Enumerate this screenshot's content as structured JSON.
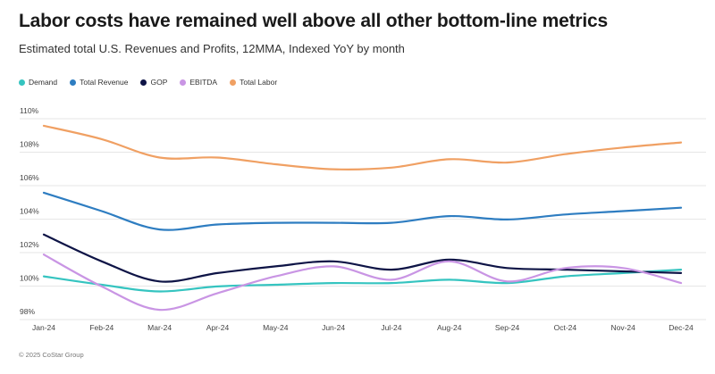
{
  "colors": {
    "demand": "#35C4C0",
    "revenue": "#2E7DC1",
    "gop": "#0E1446",
    "ebitda": "#C995E4",
    "labor": "#F0A063",
    "grid": "#e6e6e6",
    "axis_text": "#444444"
  },
  "footer": "© 2025 CoStar Group",
  "chart_data": {
    "type": "line",
    "title": "Labor costs have remained well above all other bottom-line metrics",
    "subtitle": "Estimated total U.S. Revenues and Profits, 12MMA, Indexed YoY by month",
    "xlabel": "",
    "ylabel": "",
    "categories": [
      "Jan-24",
      "Feb-24",
      "Mar-24",
      "Apr-24",
      "May-24",
      "Jun-24",
      "Jul-24",
      "Aug-24",
      "Sep-24",
      "Oct-24",
      "Nov-24",
      "Dec-24"
    ],
    "ylim": [
      98,
      110
    ],
    "yticks": [
      98,
      100,
      102,
      104,
      106,
      108,
      110
    ],
    "ytick_labels": [
      "98%",
      "100%",
      "102%",
      "104%",
      "106%",
      "108%",
      "110%"
    ],
    "grid": true,
    "legend_position": "top-left",
    "series": [
      {
        "key": "demand",
        "name": "Demand",
        "values": [
          100.1,
          99.6,
          99.2,
          99.5,
          99.6,
          99.7,
          99.7,
          99.9,
          99.7,
          100.1,
          100.3,
          100.5
        ]
      },
      {
        "key": "revenue",
        "name": "Total Revenue",
        "values": [
          105.1,
          104.0,
          102.9,
          103.2,
          103.3,
          103.3,
          103.3,
          103.7,
          103.5,
          103.8,
          104.0,
          104.2
        ]
      },
      {
        "key": "gop",
        "name": "GOP",
        "values": [
          102.6,
          101.0,
          99.8,
          100.3,
          100.7,
          101.0,
          100.5,
          101.1,
          100.6,
          100.5,
          100.4,
          100.3
        ]
      },
      {
        "key": "ebitda",
        "name": "EBITDA",
        "values": [
          101.4,
          99.5,
          98.1,
          99.1,
          100.1,
          100.7,
          99.9,
          101.0,
          99.8,
          100.6,
          100.6,
          99.7
        ]
      },
      {
        "key": "labor",
        "name": "Total Labor",
        "values": [
          109.1,
          108.3,
          107.2,
          107.2,
          106.8,
          106.5,
          106.6,
          107.1,
          106.9,
          107.4,
          107.8,
          108.1
        ]
      }
    ]
  }
}
